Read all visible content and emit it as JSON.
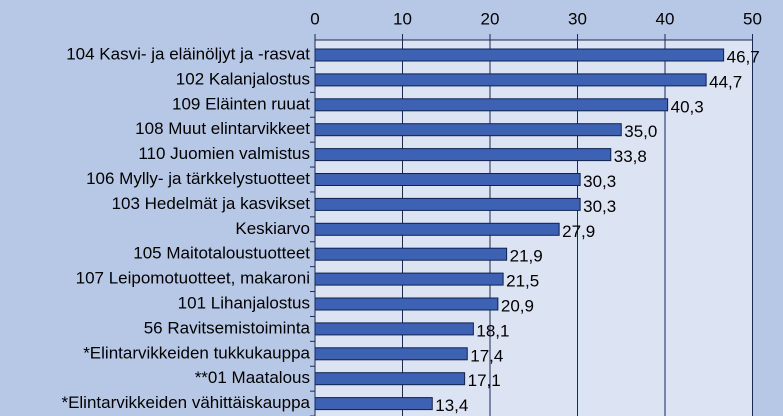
{
  "chart_data": {
    "type": "barh",
    "categories": [
      "104 Kasvi- ja eläinöljyt ja -rasvat",
      "102 Kalanjalostus",
      "109 Eläinten ruuat",
      "108 Muut elintarvikkeet",
      "110 Juomien valmistus",
      "106 Mylly- ja tärkkelystuotteet",
      "103 Hedelmät ja kasvikset",
      "Keskiarvo",
      "105 Maitotaloustuotteet",
      "107 Leipomotuotteet, makaroni",
      "101 Lihanjalostus",
      "56 Ravitsemistoiminta",
      "*Elintarvikkeiden tukkukauppa",
      "**01 Maatalous",
      "*Elintarvikkeiden vähittäiskauppa"
    ],
    "values": [
      46.7,
      44.7,
      40.3,
      35.0,
      33.8,
      30.3,
      30.3,
      27.9,
      21.9,
      21.5,
      20.9,
      18.1,
      17.4,
      17.1,
      13.4
    ],
    "value_labels": [
      "46,7",
      "44,7",
      "40,3",
      "35,0",
      "33,8",
      "30,3",
      "30,3",
      "27,9",
      "21,9",
      "21,5",
      "20,9",
      "18,1",
      "17,4",
      "17,1",
      "13,4"
    ],
    "color": "#3d62b3",
    "xlim": [
      0,
      50
    ],
    "xticks": [
      0,
      10,
      20,
      30,
      40,
      50
    ],
    "grid": true
  }
}
